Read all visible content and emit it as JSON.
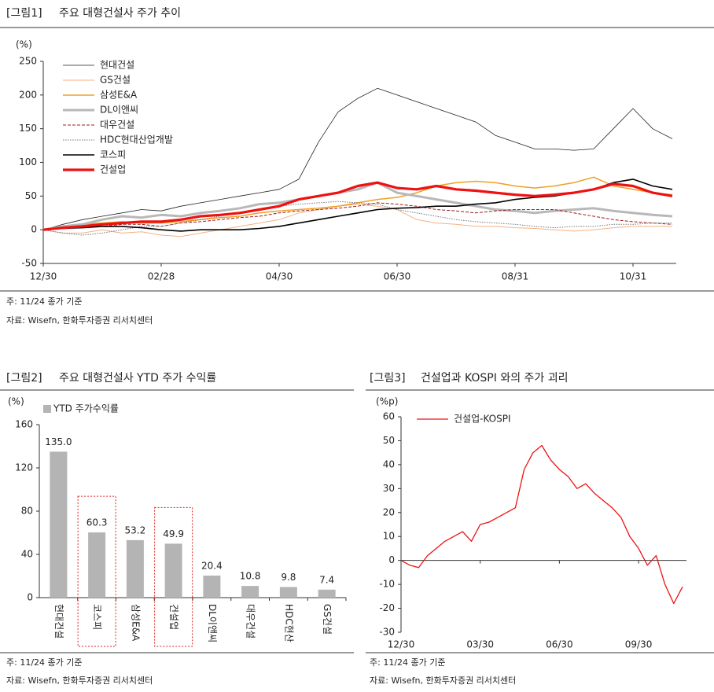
{
  "chart_data": [
    {
      "type": "line",
      "figure_label": "[그림1]",
      "title": "주요 대형건설사 주가 추이",
      "y_label": "(%)",
      "note": "주: 11/24 종가 기준",
      "source": "자료: Wisefn, 한화투자증권 리서치센터",
      "categories": [
        "12/30",
        null,
        null,
        null,
        null,
        null,
        "02/28",
        null,
        null,
        null,
        null,
        null,
        "04/30",
        null,
        null,
        null,
        null,
        null,
        "06/30",
        null,
        null,
        null,
        null,
        null,
        "08/31",
        null,
        null,
        null,
        null,
        null,
        "10/31",
        null,
        null
      ],
      "ylim": [
        -50,
        250
      ],
      "yticks": [
        -50,
        0,
        50,
        100,
        150,
        200,
        250
      ],
      "series": [
        {
          "name": "현대건설",
          "color": "#222222",
          "width": 0.8,
          "dash": "solid",
          "values": [
            0,
            8,
            15,
            20,
            25,
            30,
            28,
            35,
            40,
            45,
            50,
            55,
            60,
            75,
            130,
            175,
            195,
            210,
            200,
            190,
            180,
            170,
            160,
            140,
            130,
            120,
            120,
            118,
            120,
            150,
            180,
            150,
            135
          ]
        },
        {
          "name": "GS건설",
          "color": "#f4b183",
          "width": 1,
          "dash": "solid",
          "values": [
            0,
            -5,
            -5,
            0,
            -5,
            -3,
            -8,
            -10,
            -5,
            0,
            5,
            10,
            15,
            25,
            30,
            35,
            38,
            35,
            30,
            15,
            10,
            8,
            5,
            5,
            3,
            2,
            0,
            -2,
            0,
            3,
            5,
            5,
            5
          ]
        },
        {
          "name": "삼성E&A",
          "color": "#f0a020",
          "width": 1.5,
          "dash": "solid",
          "values": [
            0,
            5,
            8,
            10,
            12,
            10,
            10,
            12,
            15,
            18,
            20,
            25,
            28,
            30,
            32,
            35,
            40,
            45,
            48,
            55,
            65,
            70,
            72,
            70,
            65,
            62,
            65,
            70,
            78,
            65,
            60,
            55,
            52
          ]
        },
        {
          "name": "DL이앤씨",
          "color": "#b8b8b8",
          "width": 3,
          "dash": "solid",
          "values": [
            0,
            5,
            8,
            15,
            20,
            18,
            22,
            20,
            25,
            28,
            32,
            38,
            40,
            45,
            50,
            55,
            60,
            70,
            55,
            50,
            45,
            40,
            35,
            30,
            28,
            25,
            28,
            30,
            32,
            28,
            25,
            22,
            20
          ]
        },
        {
          "name": "대우건설",
          "color": "#9b1c1c",
          "width": 1,
          "dash": "dashed",
          "values": [
            0,
            2,
            3,
            5,
            8,
            8,
            5,
            10,
            12,
            15,
            18,
            20,
            25,
            28,
            30,
            32,
            35,
            40,
            38,
            35,
            30,
            28,
            25,
            28,
            30,
            30,
            30,
            25,
            20,
            15,
            12,
            10,
            8
          ]
        },
        {
          "name": "HDC현대산업개발",
          "color": "#777777",
          "width": 1,
          "dash": "dotted",
          "values": [
            0,
            -5,
            -8,
            -5,
            0,
            5,
            5,
            10,
            15,
            20,
            25,
            30,
            35,
            38,
            40,
            42,
            40,
            38,
            30,
            25,
            20,
            15,
            12,
            10,
            8,
            5,
            3,
            5,
            5,
            8,
            8,
            10,
            10
          ]
        },
        {
          "name": "코스피",
          "color": "#000000",
          "width": 1.6,
          "dash": "solid",
          "values": [
            0,
            2,
            3,
            5,
            5,
            3,
            0,
            -2,
            0,
            0,
            0,
            2,
            5,
            10,
            15,
            20,
            25,
            30,
            32,
            33,
            35,
            35,
            38,
            40,
            45,
            48,
            50,
            55,
            60,
            70,
            75,
            65,
            60
          ]
        },
        {
          "name": "건설업",
          "color": "#ee1111",
          "width": 3.2,
          "dash": "solid",
          "values": [
            0,
            3,
            5,
            8,
            10,
            12,
            12,
            15,
            20,
            22,
            25,
            30,
            35,
            45,
            50,
            55,
            65,
            70,
            62,
            60,
            65,
            60,
            58,
            55,
            52,
            50,
            52,
            55,
            60,
            68,
            65,
            55,
            50
          ]
        }
      ]
    },
    {
      "type": "bar",
      "figure_label": "[그림2]",
      "title": "주요 대형건설사 YTD 주가 수익률",
      "y_label": "(%)",
      "note": "주: 11/24 종가 기준",
      "source": "자료: Wisefn, 한화투자증권 리서치센터",
      "categories": [
        "현대건설",
        "코스피",
        "삼성E&A",
        "건설업",
        "DL이앤씨",
        "대우건설",
        "HDC현산",
        "GS건설"
      ],
      "series": [
        {
          "name": "YTD 주가수익률",
          "color": "#b4b4b4",
          "values": [
            135.0,
            60.3,
            53.2,
            49.9,
            20.4,
            10.8,
            9.8,
            7.4
          ],
          "value_labels": [
            "135.0",
            "60.3",
            "53.2",
            "49.9",
            "20.4",
            "10.8",
            "9.8",
            "7.4"
          ]
        }
      ],
      "highlight_indices": [
        1,
        3
      ],
      "highlight_color": "#e02020",
      "ylim": [
        0,
        160
      ],
      "yticks": [
        0,
        40,
        80,
        120,
        160
      ]
    },
    {
      "type": "line",
      "figure_label": "[그림3]",
      "title": "건설업과 KOSPI 와의 주가 괴리",
      "y_label": "(%p)",
      "note": "주: 11/24 종가 기준",
      "source": "자료: Wisefn, 한화투자증권 리서치센터",
      "categories": [
        "12/30",
        null,
        null,
        null,
        null,
        null,
        null,
        null,
        null,
        "03/30",
        null,
        null,
        null,
        null,
        null,
        null,
        null,
        null,
        "06/30",
        null,
        null,
        null,
        null,
        null,
        null,
        null,
        null,
        "09/30",
        null,
        null,
        null,
        null,
        null
      ],
      "ylim": [
        -30,
        60
      ],
      "yticks": [
        -30,
        -20,
        -10,
        0,
        10,
        20,
        30,
        40,
        50,
        60
      ],
      "series": [
        {
          "name": "건설업-KOSPI",
          "color": "#ee1111",
          "width": 1.3,
          "dash": "solid",
          "values": [
            0,
            -2,
            -3,
            2,
            5,
            8,
            10,
            12,
            8,
            15,
            16,
            18,
            20,
            22,
            38,
            45,
            48,
            42,
            38,
            35,
            30,
            32,
            28,
            25,
            22,
            18,
            10,
            5,
            -2,
            2,
            -10,
            -18,
            -11
          ]
        }
      ]
    }
  ]
}
